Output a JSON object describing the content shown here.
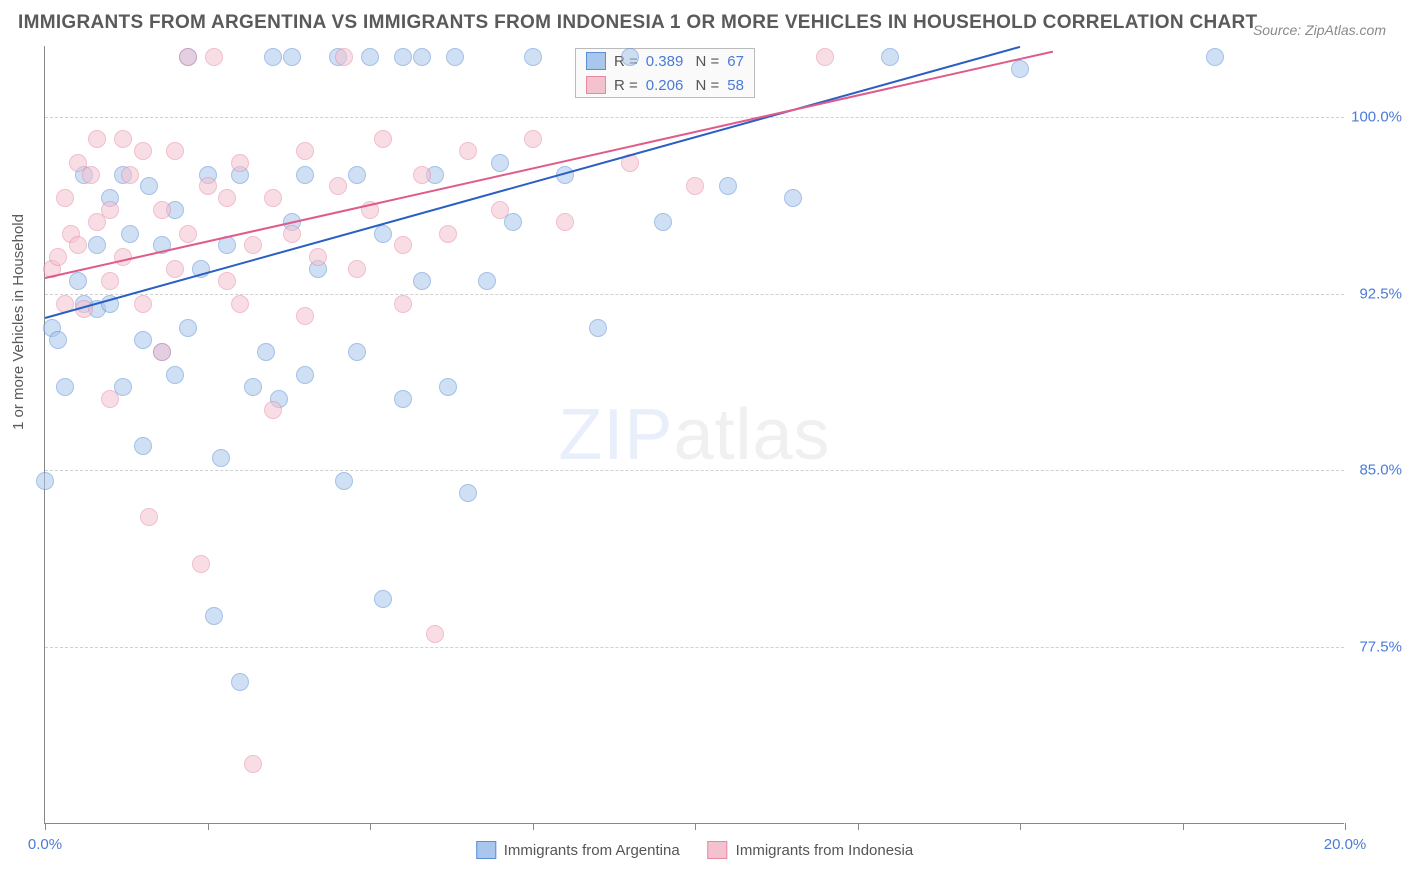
{
  "title": "IMMIGRANTS FROM ARGENTINA VS IMMIGRANTS FROM INDONESIA 1 OR MORE VEHICLES IN HOUSEHOLD CORRELATION CHART",
  "source": "Source: ZipAtlas.com",
  "watermark": {
    "part1": "ZIP",
    "part2": "atlas"
  },
  "y_axis": {
    "title": "1 or more Vehicles in Household"
  },
  "chart": {
    "type": "scatter",
    "xlim": [
      0,
      20
    ],
    "ylim": [
      70,
      103
    ],
    "y_ticks": [
      77.5,
      85.0,
      92.5,
      100.0
    ],
    "y_tick_labels": [
      "77.5%",
      "85.0%",
      "92.5%",
      "100.0%"
    ],
    "x_ticks": [
      0,
      2.5,
      5,
      7.5,
      10,
      12.5,
      15,
      17.5,
      20
    ],
    "x_tick_labels_shown": {
      "0": "0.0%",
      "20": "20.0%"
    },
    "background_color": "#ffffff",
    "grid_color": "#d0d0d0",
    "marker_radius": 9,
    "marker_opacity": 0.55,
    "series": [
      {
        "name": "Immigrants from Argentina",
        "color_fill": "#a9c6ec",
        "color_stroke": "#5a8fd6",
        "R": "0.389",
        "N": "67",
        "trend": {
          "x1": 0,
          "y1": 91.5,
          "x2": 15,
          "y2": 103,
          "color": "#2b5fc4"
        },
        "points": [
          [
            0.0,
            84.5
          ],
          [
            0.1,
            91.0
          ],
          [
            0.2,
            90.5
          ],
          [
            0.3,
            88.5
          ],
          [
            0.5,
            93.0
          ],
          [
            0.6,
            92.0
          ],
          [
            0.6,
            97.5
          ],
          [
            0.8,
            94.5
          ],
          [
            0.8,
            91.8
          ],
          [
            1.0,
            96.5
          ],
          [
            1.0,
            92.0
          ],
          [
            1.2,
            97.5
          ],
          [
            1.2,
            88.5
          ],
          [
            1.3,
            95.0
          ],
          [
            1.5,
            90.5
          ],
          [
            1.5,
            86.0
          ],
          [
            1.6,
            97.0
          ],
          [
            1.8,
            90.0
          ],
          [
            1.8,
            94.5
          ],
          [
            2.0,
            96.0
          ],
          [
            2.0,
            89.0
          ],
          [
            2.2,
            102.5
          ],
          [
            2.2,
            91.0
          ],
          [
            2.4,
            93.5
          ],
          [
            2.5,
            97.5
          ],
          [
            2.6,
            78.8
          ],
          [
            2.7,
            85.5
          ],
          [
            2.8,
            94.5
          ],
          [
            3.0,
            76.0
          ],
          [
            3.0,
            97.5
          ],
          [
            3.2,
            88.5
          ],
          [
            3.4,
            90.0
          ],
          [
            3.5,
            102.5
          ],
          [
            3.6,
            88.0
          ],
          [
            3.8,
            102.5
          ],
          [
            3.8,
            95.5
          ],
          [
            4.0,
            97.5
          ],
          [
            4.0,
            89.0
          ],
          [
            4.2,
            93.5
          ],
          [
            4.5,
            102.5
          ],
          [
            4.6,
            84.5
          ],
          [
            4.8,
            97.5
          ],
          [
            4.8,
            90.0
          ],
          [
            5.0,
            102.5
          ],
          [
            5.2,
            95.0
          ],
          [
            5.2,
            79.5
          ],
          [
            5.5,
            88.0
          ],
          [
            5.5,
            102.5
          ],
          [
            5.8,
            93.0
          ],
          [
            5.8,
            102.5
          ],
          [
            6.0,
            97.5
          ],
          [
            6.2,
            88.5
          ],
          [
            6.3,
            102.5
          ],
          [
            6.5,
            84.0
          ],
          [
            6.8,
            93.0
          ],
          [
            7.0,
            98.0
          ],
          [
            7.2,
            95.5
          ],
          [
            7.5,
            102.5
          ],
          [
            8.0,
            97.5
          ],
          [
            8.5,
            91.0
          ],
          [
            9.0,
            102.5
          ],
          [
            9.5,
            95.5
          ],
          [
            10.5,
            97.0
          ],
          [
            11.5,
            96.5
          ],
          [
            13.0,
            102.5
          ],
          [
            15.0,
            102.0
          ],
          [
            18.0,
            102.5
          ]
        ]
      },
      {
        "name": "Immigrants from Indonesia",
        "color_fill": "#f4c2cf",
        "color_stroke": "#e68aa4",
        "R": "0.206",
        "N": "58",
        "trend": {
          "x1": 0,
          "y1": 93.2,
          "x2": 15.5,
          "y2": 102.8,
          "color": "#e05a8a"
        },
        "points": [
          [
            0.1,
            93.5
          ],
          [
            0.2,
            94.0
          ],
          [
            0.3,
            96.5
          ],
          [
            0.3,
            92.0
          ],
          [
            0.4,
            95.0
          ],
          [
            0.5,
            94.5
          ],
          [
            0.5,
            98.0
          ],
          [
            0.6,
            91.8
          ],
          [
            0.7,
            97.5
          ],
          [
            0.8,
            95.5
          ],
          [
            0.8,
            99.0
          ],
          [
            1.0,
            93.0
          ],
          [
            1.0,
            96.0
          ],
          [
            1.0,
            88.0
          ],
          [
            1.2,
            99.0
          ],
          [
            1.2,
            94.0
          ],
          [
            1.3,
            97.5
          ],
          [
            1.5,
            98.5
          ],
          [
            1.5,
            92.0
          ],
          [
            1.6,
            83.0
          ],
          [
            1.8,
            96.0
          ],
          [
            1.8,
            90.0
          ],
          [
            2.0,
            98.5
          ],
          [
            2.0,
            93.5
          ],
          [
            2.2,
            95.0
          ],
          [
            2.2,
            102.5
          ],
          [
            2.4,
            81.0
          ],
          [
            2.5,
            97.0
          ],
          [
            2.6,
            102.5
          ],
          [
            2.8,
            93.0
          ],
          [
            2.8,
            96.5
          ],
          [
            3.0,
            92.0
          ],
          [
            3.0,
            98.0
          ],
          [
            3.2,
            72.5
          ],
          [
            3.2,
            94.5
          ],
          [
            3.5,
            96.5
          ],
          [
            3.5,
            87.5
          ],
          [
            3.8,
            95.0
          ],
          [
            4.0,
            98.5
          ],
          [
            4.0,
            91.5
          ],
          [
            4.2,
            94.0
          ],
          [
            4.5,
            97.0
          ],
          [
            4.6,
            102.5
          ],
          [
            4.8,
            93.5
          ],
          [
            5.0,
            96.0
          ],
          [
            5.2,
            99.0
          ],
          [
            5.5,
            94.5
          ],
          [
            5.5,
            92.0
          ],
          [
            5.8,
            97.5
          ],
          [
            6.0,
            78.0
          ],
          [
            6.2,
            95.0
          ],
          [
            6.5,
            98.5
          ],
          [
            7.0,
            96.0
          ],
          [
            7.5,
            99.0
          ],
          [
            8.0,
            95.5
          ],
          [
            9.0,
            98.0
          ],
          [
            10.0,
            97.0
          ],
          [
            12.0,
            102.5
          ]
        ]
      }
    ]
  },
  "legend_bottom": {
    "items": [
      {
        "label": "Immigrants from Argentina",
        "fill": "#a9c6ec",
        "stroke": "#5a8fd6"
      },
      {
        "label": "Immigrants from Indonesia",
        "fill": "#f4c2cf",
        "stroke": "#e68aa4"
      }
    ]
  }
}
